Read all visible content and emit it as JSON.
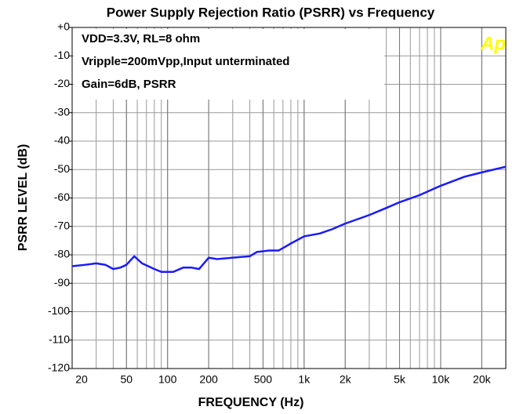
{
  "chart_data": {
    "type": "line",
    "title": "Power Supply Rejection Ratio (PSRR) vs Frequency",
    "x_label": "FREQUENCY (Hz)",
    "y_label": "PSRR LEVEL (dB)",
    "annotations": [
      "VDD=3.3V, RL=8 ohm",
      "Vripple=200mVpp,Input unterminated",
      "Gain=6dB, PSRR"
    ],
    "logo": "Ap",
    "x_scale": "log",
    "grid": true,
    "minor_grid": true,
    "xlim": [
      20,
      30000
    ],
    "ylim": [
      -120,
      0
    ],
    "xticks": [
      20,
      50,
      100,
      200,
      500,
      {
        "value": 1000,
        "label": "1k"
      },
      {
        "value": 2000,
        "label": "2k"
      },
      {
        "value": 5000,
        "label": "5k"
      },
      {
        "value": 10000,
        "label": "10k"
      },
      {
        "value": 20000,
        "label": "20k"
      }
    ],
    "yticks": [
      {
        "value": 0,
        "label": "+0"
      },
      -10,
      -20,
      -30,
      -40,
      -50,
      -60,
      -70,
      -80,
      -90,
      -100,
      -110,
      -120
    ],
    "x": [
      20,
      25,
      30,
      35,
      40,
      45,
      50,
      57,
      65,
      80,
      90,
      110,
      130,
      150,
      170,
      200,
      230,
      300,
      400,
      450,
      550,
      650,
      800,
      1000,
      1300,
      1600,
      2000,
      3000,
      4000,
      5000,
      7000,
      10000,
      15000,
      20000,
      30000
    ],
    "series": [
      {
        "name": "PSRR",
        "color": "#1a1aff",
        "values": [
          -84,
          -83.5,
          -83,
          -83.5,
          -85,
          -84.5,
          -83.5,
          -80.5,
          -83,
          -85,
          -86,
          -86,
          -84.5,
          -84.5,
          -85,
          -81,
          -81.5,
          -81,
          -80.5,
          -79,
          -78.5,
          -78.5,
          -76,
          -73.5,
          -72.5,
          -71,
          -69,
          -66,
          -63.5,
          -61.5,
          -59,
          -55.7,
          -52.5,
          -51,
          -49
        ]
      }
    ]
  }
}
